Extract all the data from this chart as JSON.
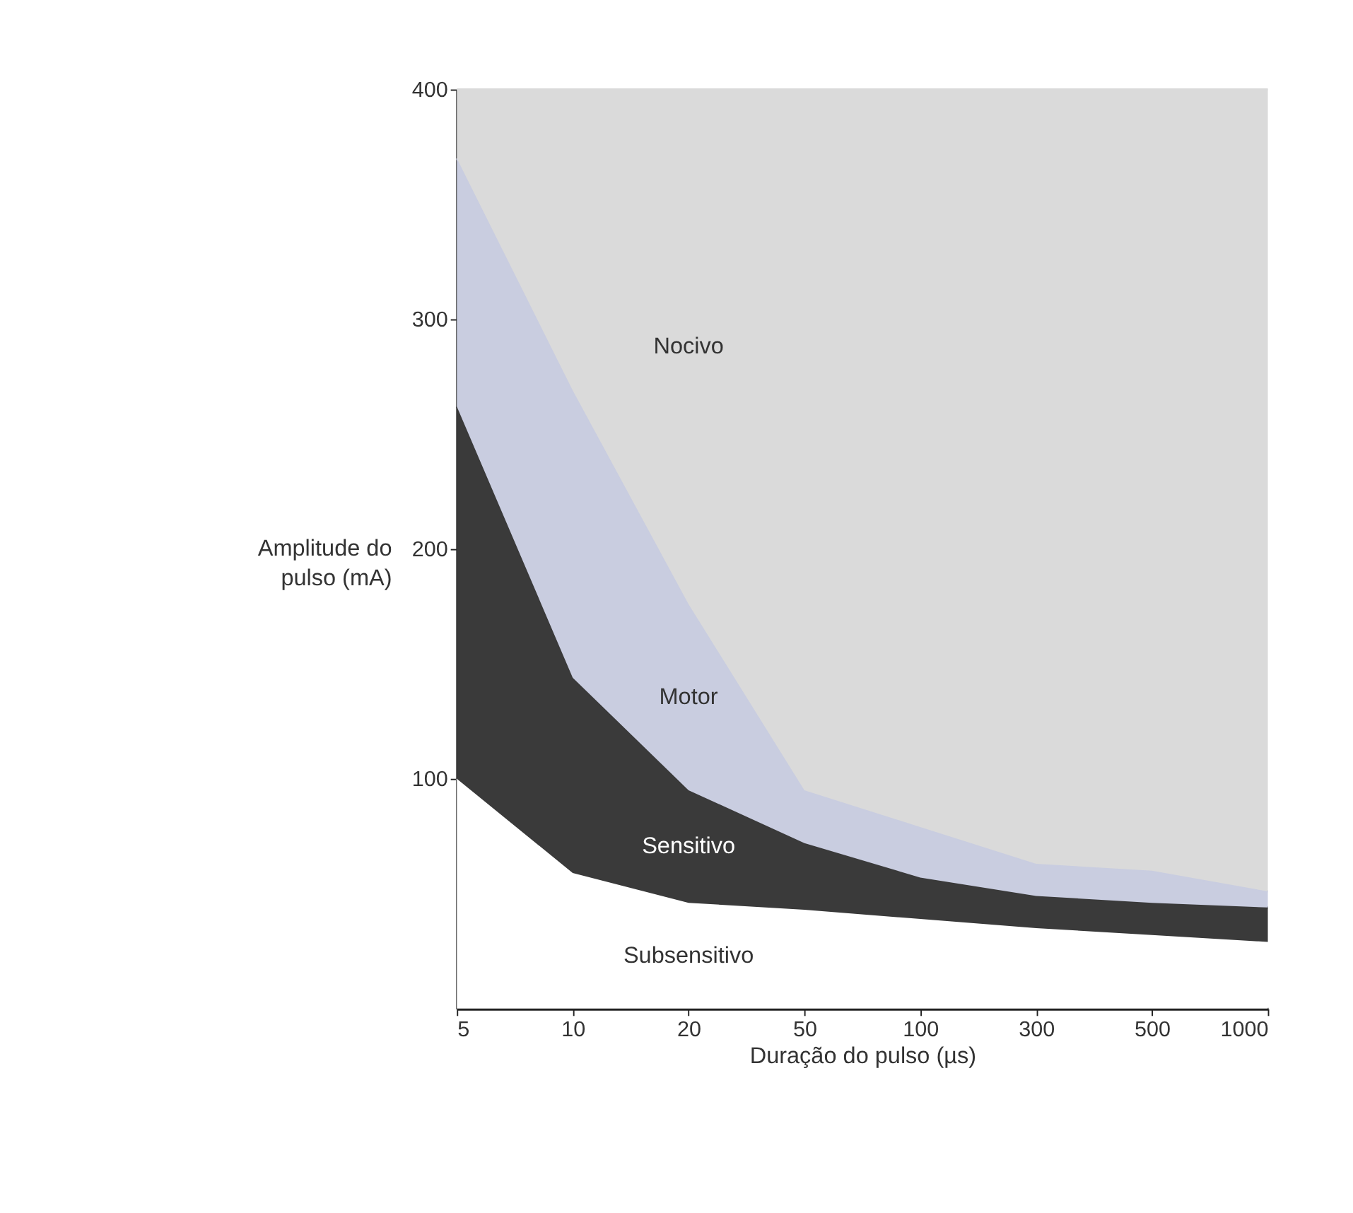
{
  "chart_data": {
    "type": "area",
    "stacked": true,
    "xlabel": "Duração do pulso (µs)",
    "ylabel": "Amplitude do pulso (mA)",
    "categories": [
      "5",
      "10",
      "20",
      "50",
      "100",
      "300",
      "500",
      "1000"
    ],
    "series": [
      {
        "name": "Subsensitivo",
        "color": "#ffffff",
        "values": [
          100,
          59,
          46,
          43,
          39,
          35,
          32,
          29
        ]
      },
      {
        "name": "Sensitivo",
        "color": "#3a3a3a",
        "values": [
          162,
          85,
          49,
          29,
          18,
          14,
          14,
          15
        ]
      },
      {
        "name": "Motor",
        "color": "#c9cde0",
        "values": [
          108,
          125,
          81,
          23,
          22,
          14,
          14,
          7
        ]
      },
      {
        "name": "Nocivo",
        "color": "#dadada",
        "values": [
          30,
          131,
          224,
          305,
          321,
          337,
          340,
          349
        ]
      }
    ],
    "ylim": [
      0,
      400
    ],
    "yticks": [
      100,
      200,
      300,
      400
    ],
    "grid": false,
    "legend": false
  }
}
